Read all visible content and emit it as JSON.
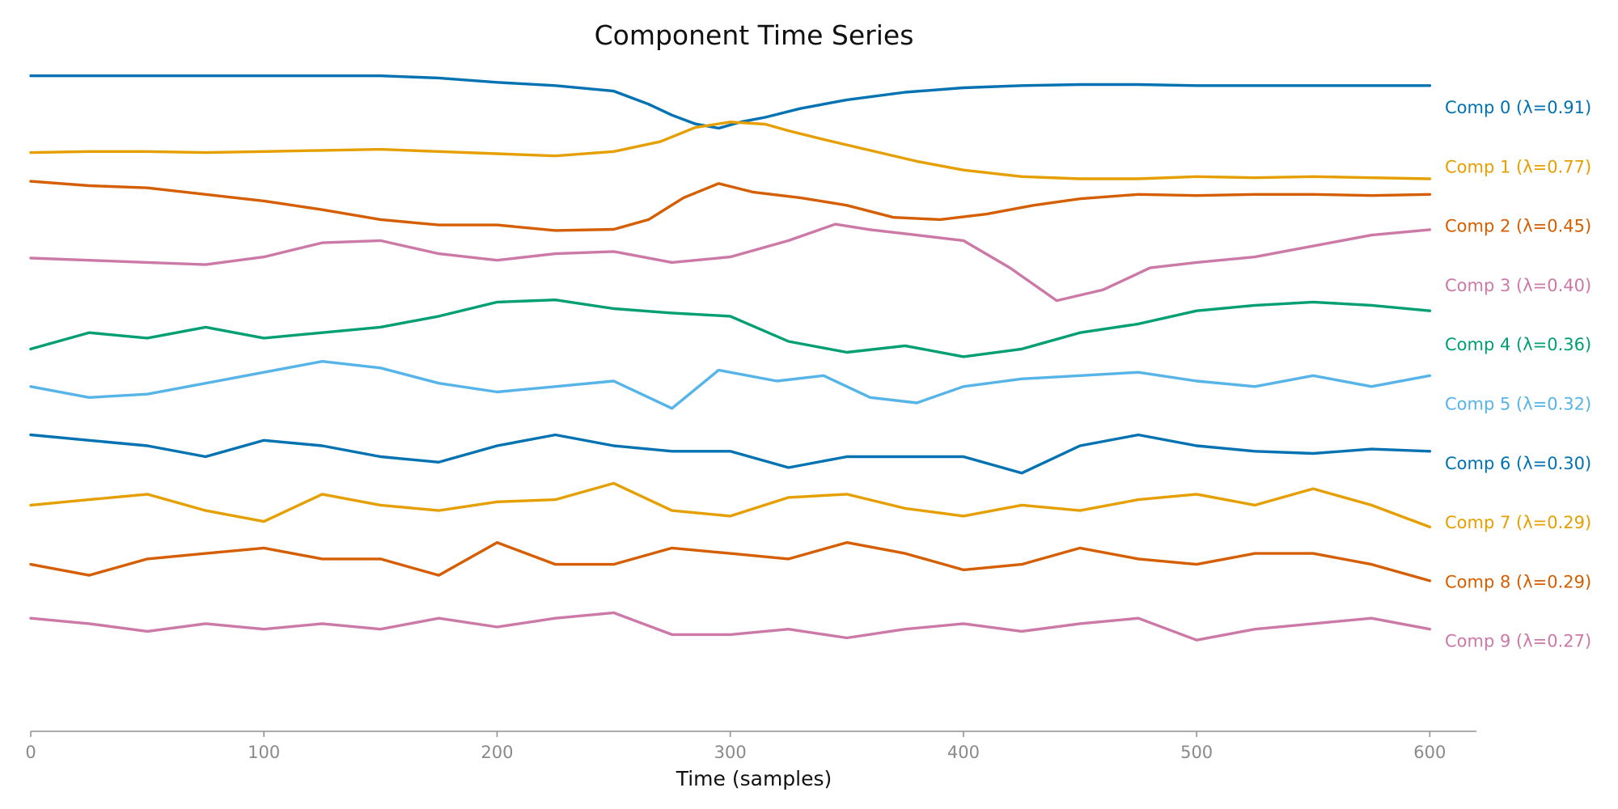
{
  "chart_data": {
    "type": "line",
    "title": "Component Time Series",
    "xlabel": "Time (samples)",
    "ylabel": "",
    "xlim": [
      0,
      620
    ],
    "x_ticks": [
      0,
      100,
      200,
      300,
      400,
      500,
      600
    ],
    "grid": false,
    "legend": "none",
    "series_labels_position": "right-of-lines",
    "series": [
      {
        "name": "Comp 0 (λ=0.91)",
        "color": "#0072B2",
        "x": [
          0,
          25,
          50,
          75,
          100,
          125,
          150,
          175,
          200,
          225,
          250,
          265,
          275,
          285,
          295,
          305,
          315,
          330,
          350,
          375,
          400,
          425,
          450,
          475,
          500,
          525,
          550,
          575,
          600
        ],
        "values": [
          0.18,
          0.18,
          0.18,
          0.18,
          0.18,
          0.18,
          0.18,
          0.16,
          0.12,
          0.09,
          0.04,
          -0.08,
          -0.18,
          -0.26,
          -0.3,
          -0.24,
          -0.2,
          -0.12,
          -0.04,
          0.03,
          0.07,
          0.09,
          0.1,
          0.1,
          0.09,
          0.09,
          0.09,
          0.09,
          0.09
        ]
      },
      {
        "name": "Comp 1 (λ=0.77)",
        "color": "#E69F00",
        "x": [
          0,
          25,
          50,
          75,
          100,
          125,
          150,
          175,
          200,
          225,
          250,
          270,
          285,
          300,
          315,
          325,
          340,
          360,
          380,
          400,
          425,
          450,
          475,
          500,
          525,
          550,
          575,
          600
        ],
        "values": [
          0.02,
          0.03,
          0.03,
          0.02,
          0.03,
          0.04,
          0.05,
          0.03,
          0.01,
          -0.01,
          0.03,
          0.12,
          0.25,
          0.3,
          0.28,
          0.22,
          0.14,
          0.04,
          -0.06,
          -0.14,
          -0.2,
          -0.22,
          -0.22,
          -0.2,
          -0.21,
          -0.2,
          -0.21,
          -0.22
        ]
      },
      {
        "name": "Comp 2 (λ=0.45)",
        "color": "#D55E00",
        "x": [
          0,
          25,
          50,
          75,
          100,
          125,
          150,
          175,
          200,
          225,
          250,
          265,
          280,
          295,
          310,
          330,
          350,
          370,
          390,
          410,
          430,
          450,
          475,
          500,
          525,
          550,
          575,
          600
        ],
        "values": [
          0.3,
          0.26,
          0.24,
          0.18,
          0.12,
          0.04,
          -0.05,
          -0.1,
          -0.1,
          -0.15,
          -0.14,
          -0.05,
          0.15,
          0.28,
          0.2,
          0.15,
          0.08,
          -0.03,
          -0.05,
          0.0,
          0.08,
          0.14,
          0.18,
          0.17,
          0.18,
          0.18,
          0.17,
          0.18
        ]
      },
      {
        "name": "Comp 3 (λ=0.40)",
        "color": "#CC79A7",
        "x": [
          0,
          25,
          50,
          75,
          100,
          125,
          150,
          175,
          200,
          225,
          250,
          275,
          300,
          325,
          345,
          360,
          380,
          400,
          420,
          440,
          460,
          480,
          500,
          525,
          550,
          575,
          600
        ],
        "values": [
          0.14,
          0.12,
          0.1,
          0.08,
          0.15,
          0.28,
          0.3,
          0.18,
          0.12,
          0.18,
          0.2,
          0.1,
          0.15,
          0.3,
          0.45,
          0.4,
          0.35,
          0.3,
          0.05,
          -0.25,
          -0.15,
          0.05,
          0.1,
          0.15,
          0.25,
          0.35,
          0.4
        ]
      },
      {
        "name": "Comp 4 (λ=0.36)",
        "color": "#009E73",
        "x": [
          0,
          25,
          50,
          75,
          100,
          125,
          150,
          175,
          200,
          225,
          250,
          275,
          300,
          325,
          350,
          375,
          400,
          425,
          450,
          475,
          500,
          525,
          550,
          575,
          600
        ],
        "values": [
          -0.15,
          0.0,
          -0.05,
          0.05,
          -0.05,
          0.0,
          0.05,
          0.15,
          0.28,
          0.3,
          0.22,
          0.18,
          0.15,
          -0.08,
          -0.18,
          -0.12,
          -0.22,
          -0.15,
          0.0,
          0.08,
          0.2,
          0.25,
          0.28,
          0.25,
          0.2
        ]
      },
      {
        "name": "Comp 5 (λ=0.32)",
        "color": "#56B4E9",
        "x": [
          0,
          25,
          50,
          75,
          100,
          125,
          150,
          175,
          200,
          225,
          250,
          275,
          295,
          320,
          340,
          360,
          380,
          400,
          425,
          450,
          475,
          500,
          525,
          550,
          575,
          600
        ],
        "values": [
          0.05,
          -0.05,
          -0.02,
          0.08,
          0.18,
          0.28,
          0.22,
          0.08,
          0.0,
          0.05,
          0.1,
          -0.15,
          0.2,
          0.1,
          0.15,
          -0.05,
          -0.1,
          0.05,
          0.12,
          0.15,
          0.18,
          0.1,
          0.05,
          0.15,
          0.05,
          0.15
        ]
      },
      {
        "name": "Comp 6 (λ=0.30)",
        "color": "#0072B2",
        "x": [
          0,
          25,
          50,
          75,
          100,
          125,
          150,
          175,
          200,
          225,
          250,
          275,
          300,
          325,
          350,
          375,
          400,
          425,
          450,
          475,
          500,
          525,
          550,
          575,
          600
        ],
        "values": [
          0.15,
          0.1,
          0.05,
          -0.05,
          0.1,
          0.05,
          -0.05,
          -0.1,
          0.05,
          0.15,
          0.05,
          0.0,
          0.0,
          -0.15,
          -0.05,
          -0.05,
          -0.05,
          -0.2,
          0.05,
          0.15,
          0.05,
          0.0,
          -0.02,
          0.02,
          0.0
        ]
      },
      {
        "name": "Comp 7 (λ=0.29)",
        "color": "#E69F00",
        "x": [
          0,
          25,
          50,
          75,
          100,
          125,
          150,
          175,
          200,
          225,
          250,
          275,
          300,
          325,
          350,
          375,
          400,
          425,
          450,
          475,
          500,
          525,
          550,
          575,
          600
        ],
        "values": [
          0.05,
          0.1,
          0.15,
          0.0,
          -0.1,
          0.15,
          0.05,
          0.0,
          0.08,
          0.1,
          0.25,
          0.0,
          -0.05,
          0.12,
          0.15,
          0.02,
          -0.05,
          0.05,
          0.0,
          0.1,
          0.15,
          0.05,
          0.2,
          0.05,
          -0.15
        ]
      },
      {
        "name": "Comp 8 (λ=0.29)",
        "color": "#D55E00",
        "x": [
          0,
          25,
          50,
          75,
          100,
          125,
          150,
          175,
          200,
          225,
          250,
          275,
          300,
          325,
          350,
          375,
          400,
          425,
          450,
          475,
          500,
          525,
          550,
          575,
          600
        ],
        "values": [
          0.05,
          -0.05,
          0.1,
          0.15,
          0.2,
          0.1,
          0.1,
          -0.05,
          0.25,
          0.05,
          0.05,
          0.2,
          0.15,
          0.1,
          0.25,
          0.15,
          0.0,
          0.05,
          0.2,
          0.1,
          0.05,
          0.15,
          0.15,
          0.05,
          -0.1
        ]
      },
      {
        "name": "Comp 9 (λ=0.27)",
        "color": "#CC79A7",
        "x": [
          0,
          25,
          50,
          75,
          100,
          125,
          150,
          175,
          200,
          225,
          250,
          275,
          300,
          325,
          350,
          375,
          400,
          425,
          450,
          475,
          500,
          525,
          550,
          575,
          600
        ],
        "values": [
          0.1,
          0.05,
          -0.02,
          0.05,
          0.0,
          0.05,
          0.0,
          0.1,
          0.02,
          0.1,
          0.15,
          -0.05,
          -0.05,
          0.0,
          -0.08,
          0.0,
          0.05,
          -0.02,
          0.05,
          0.1,
          -0.1,
          0.0,
          0.05,
          0.1,
          0.0
        ]
      }
    ]
  }
}
